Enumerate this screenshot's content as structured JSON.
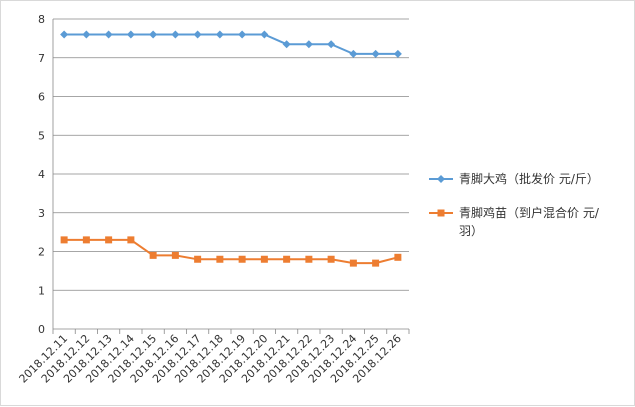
{
  "chart_data": {
    "type": "line",
    "categories": [
      "2018.12.11",
      "2018.12.12",
      "2018.12.13",
      "2018.12.14",
      "2018.12.15",
      "2018.12.16",
      "2018.12.17",
      "2018.12.18",
      "2018.12.19",
      "2018.12.20",
      "2018.12.21",
      "2018.12.22",
      "2018.12.23",
      "2018.12.24",
      "2018.12.25",
      "2018.12.26"
    ],
    "series": [
      {
        "name": "青脚大鸡（批发价 元/斤）",
        "color": "#5b9bd5",
        "marker": "diamond",
        "values": [
          7.6,
          7.6,
          7.6,
          7.6,
          7.6,
          7.6,
          7.6,
          7.6,
          7.6,
          7.6,
          7.35,
          7.35,
          7.35,
          7.1,
          7.1,
          7.1
        ]
      },
      {
        "name": "青脚鸡苗（到户混合价 元/羽）",
        "color": "#ed7d31",
        "marker": "square",
        "values": [
          2.3,
          2.3,
          2.3,
          2.3,
          1.9,
          1.9,
          1.8,
          1.8,
          1.8,
          1.8,
          1.8,
          1.8,
          1.8,
          1.7,
          1.7,
          1.85
        ]
      }
    ],
    "ylim": [
      0,
      8
    ],
    "yticks": [
      0,
      1,
      2,
      3,
      4,
      5,
      6,
      7,
      8
    ],
    "grid": true,
    "legend": "right",
    "xlabel": "",
    "ylabel": "",
    "title": ""
  }
}
